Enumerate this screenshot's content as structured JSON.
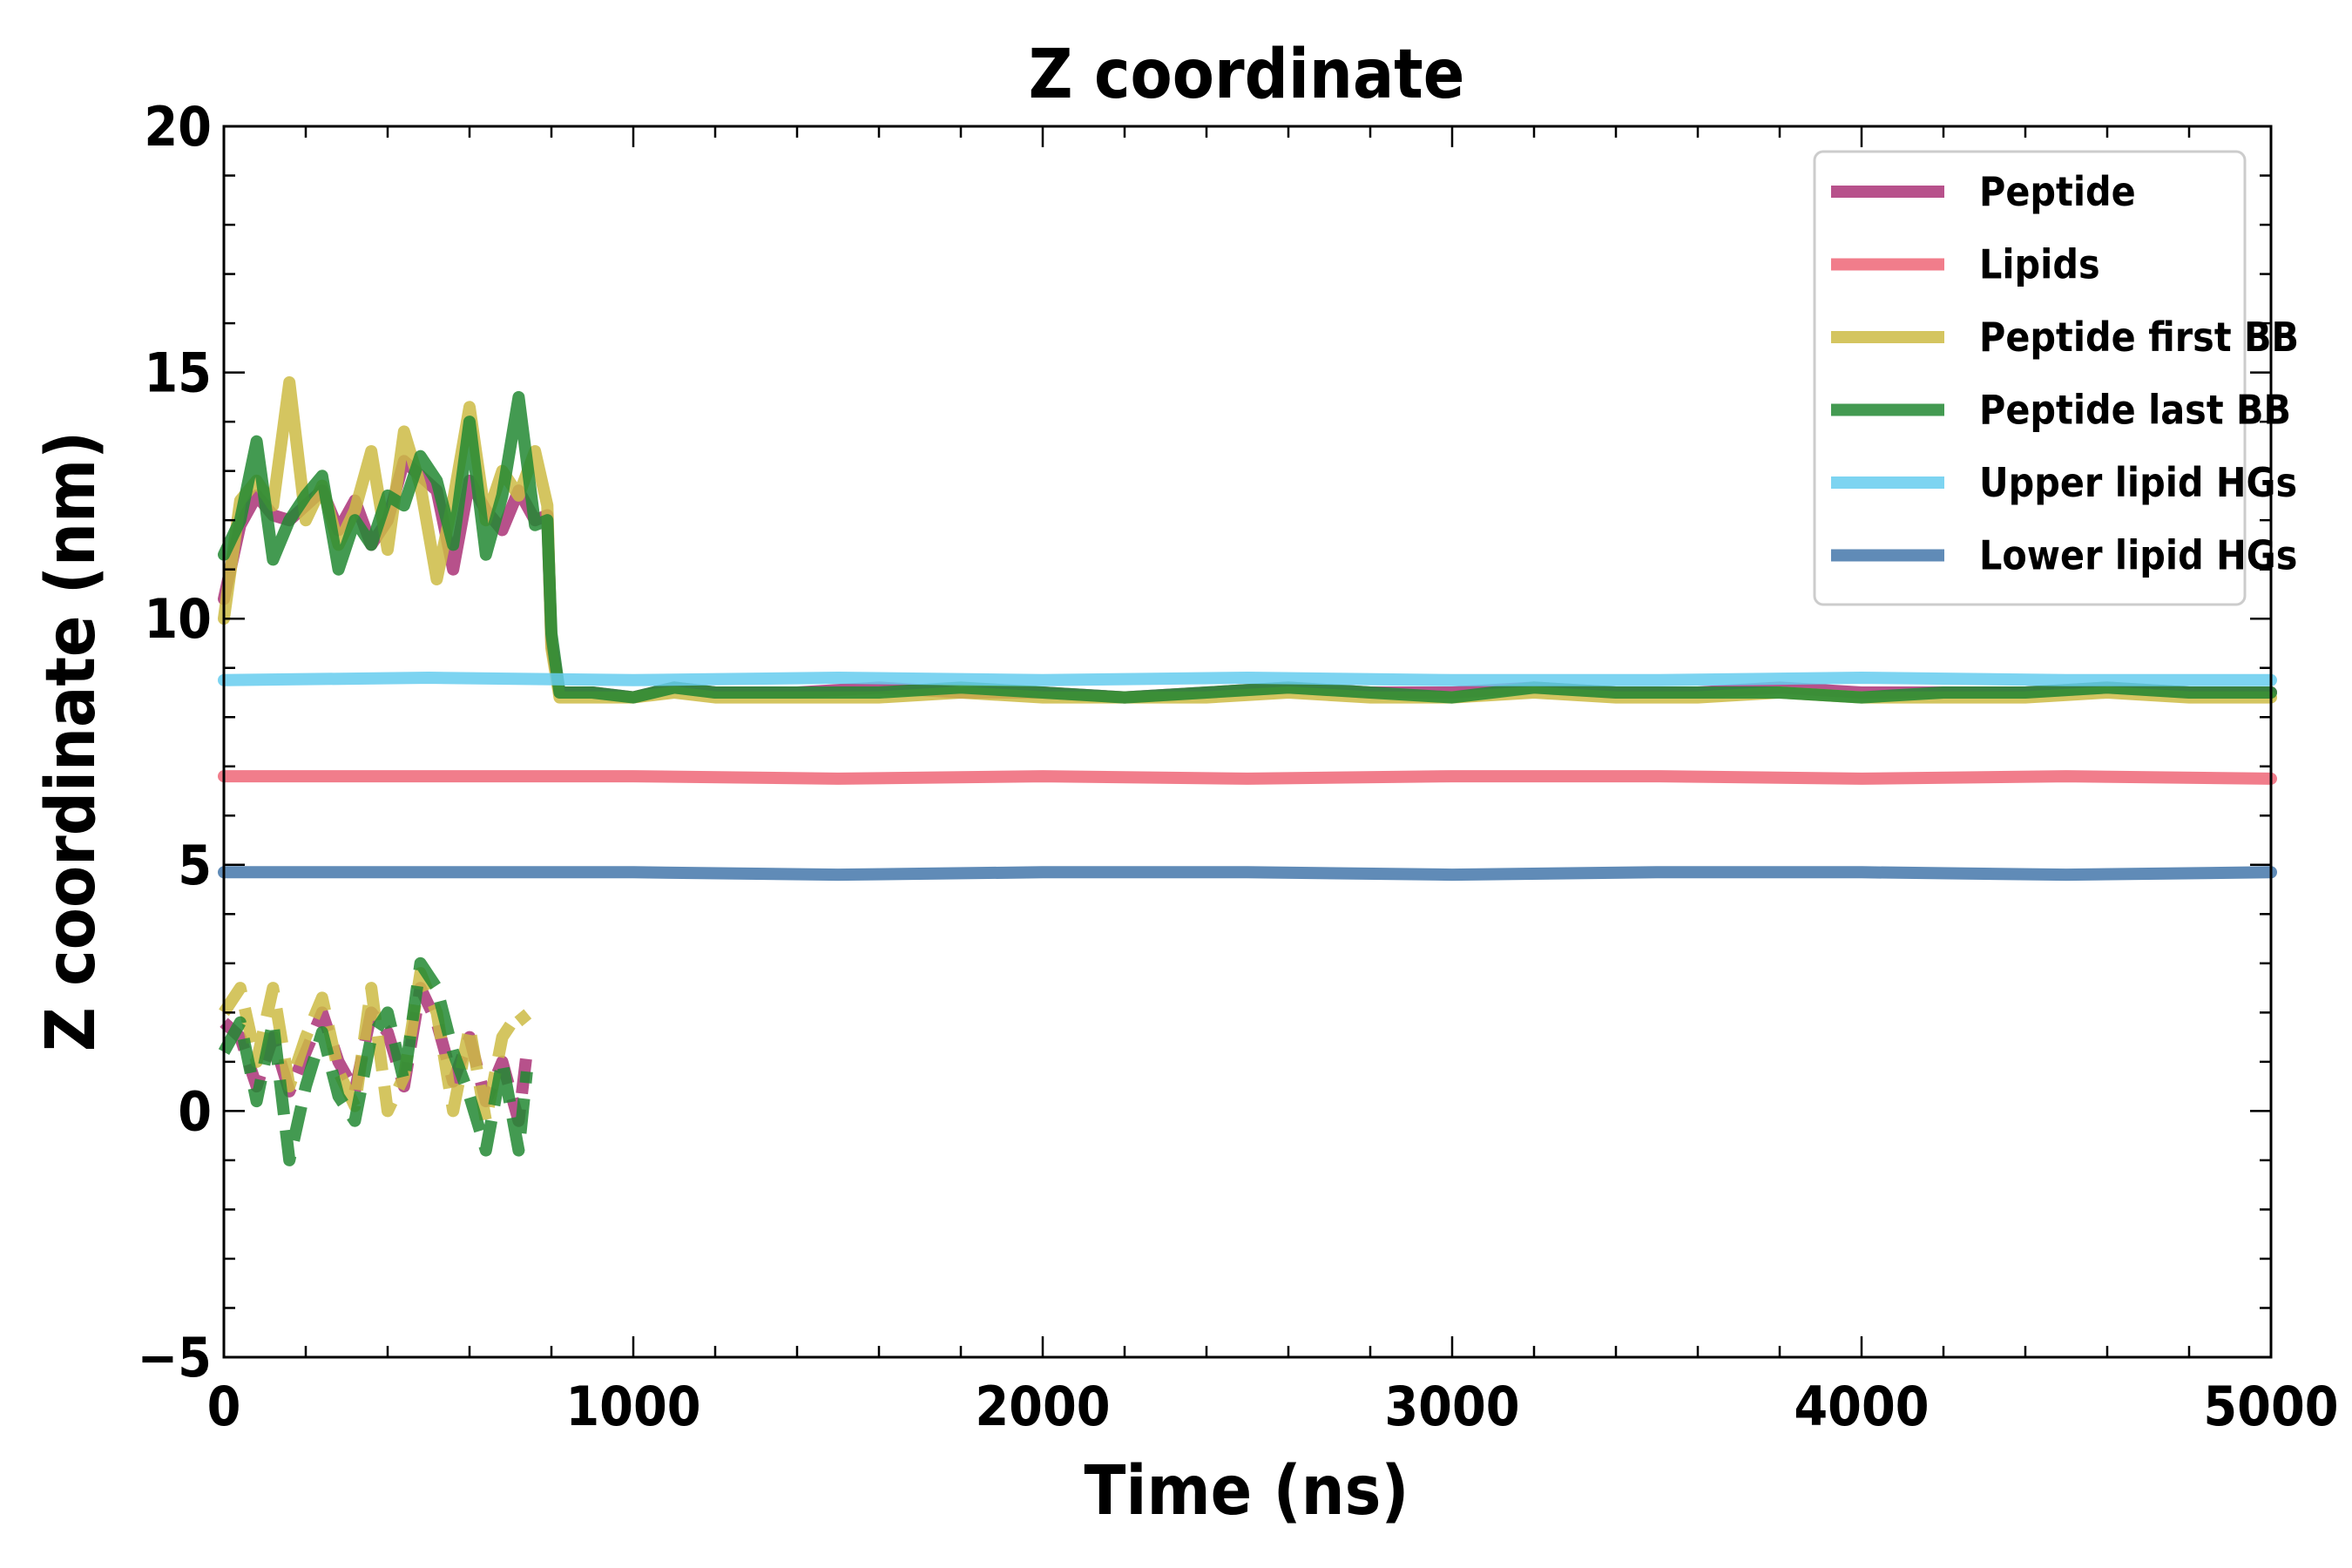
{
  "chart_data": {
    "type": "line",
    "title": "Z coordinate",
    "xlabel": "Time (ns)",
    "ylabel": "Z coordinate (nm)",
    "xlim": [
      0,
      5000
    ],
    "ylim": [
      -5,
      20
    ],
    "xticks": [
      0,
      1000,
      2000,
      3000,
      4000,
      5000
    ],
    "xtick_labels": [
      "0",
      "1000",
      "2000",
      "3000",
      "4000",
      "5000"
    ],
    "yticks": [
      -5,
      0,
      5,
      10,
      15,
      20
    ],
    "ytick_labels": [
      "−5",
      "0",
      "5",
      "10",
      "15",
      "20"
    ],
    "grid": false,
    "legend_position": "top-right",
    "series": [
      {
        "name": "Peptide",
        "color": "#aa3377",
        "style": "solid",
        "x": [
          0,
          40,
          80,
          120,
          160,
          200,
          240,
          280,
          320,
          360,
          400,
          440,
          480,
          520,
          560,
          600,
          640,
          680,
          720,
          760,
          790,
          800,
          820,
          900,
          1000,
          1100,
          1200,
          1400,
          1600,
          1800,
          2000,
          2200,
          2400,
          2600,
          2800,
          3000,
          3200,
          3400,
          3600,
          3800,
          4000,
          4200,
          4400,
          4600,
          4800,
          5000
        ],
        "y": [
          10.4,
          11.9,
          12.5,
          12.1,
          12.0,
          12.3,
          12.6,
          11.8,
          12.4,
          11.5,
          12.0,
          13.2,
          12.9,
          12.6,
          11.0,
          12.8,
          12.2,
          11.8,
          12.6,
          12.0,
          12.1,
          9.5,
          8.5,
          8.5,
          8.4,
          8.6,
          8.5,
          8.5,
          8.6,
          8.5,
          8.5,
          8.4,
          8.5,
          8.6,
          8.5,
          8.5,
          8.6,
          8.5,
          8.5,
          8.6,
          8.5,
          8.5,
          8.5,
          8.6,
          8.5,
          8.5
        ]
      },
      {
        "name": "Lipids",
        "color": "#ee6677",
        "style": "solid",
        "x": [
          0,
          500,
          1000,
          1500,
          2000,
          2500,
          3000,
          3500,
          4000,
          4500,
          5000
        ],
        "y": [
          6.8,
          6.8,
          6.8,
          6.75,
          6.8,
          6.75,
          6.8,
          6.8,
          6.75,
          6.8,
          6.75
        ]
      },
      {
        "name": "Peptide first BB",
        "color": "#ccbb44",
        "style": "solid",
        "x": [
          0,
          40,
          80,
          120,
          160,
          200,
          240,
          280,
          320,
          360,
          400,
          440,
          480,
          520,
          560,
          600,
          640,
          680,
          720,
          760,
          790,
          800,
          820,
          900,
          1000,
          1100,
          1200,
          1400,
          1600,
          1800,
          2000,
          2200,
          2400,
          2600,
          2800,
          3000,
          3200,
          3400,
          3600,
          3800,
          4000,
          4200,
          4400,
          4600,
          4800,
          5000
        ],
        "y": [
          10.0,
          12.4,
          12.8,
          12.3,
          14.8,
          12.0,
          12.7,
          11.5,
          12.2,
          13.4,
          11.4,
          13.8,
          12.7,
          10.8,
          12.4,
          14.3,
          12.0,
          13.0,
          12.5,
          13.4,
          12.3,
          9.4,
          8.4,
          8.4,
          8.4,
          8.5,
          8.4,
          8.4,
          8.4,
          8.5,
          8.4,
          8.4,
          8.4,
          8.5,
          8.4,
          8.4,
          8.5,
          8.4,
          8.4,
          8.5,
          8.4,
          8.4,
          8.4,
          8.5,
          8.4,
          8.4
        ]
      },
      {
        "name": "Peptide last BB",
        "color": "#228833",
        "style": "solid",
        "x": [
          0,
          40,
          80,
          120,
          160,
          200,
          240,
          280,
          320,
          360,
          400,
          440,
          480,
          520,
          560,
          600,
          640,
          680,
          720,
          760,
          790,
          800,
          820,
          900,
          1000,
          1100,
          1200,
          1400,
          1600,
          1800,
          2000,
          2200,
          2400,
          2600,
          2800,
          3000,
          3200,
          3400,
          3600,
          3800,
          4000,
          4200,
          4400,
          4600,
          4800,
          5000
        ],
        "y": [
          11.3,
          12.0,
          13.6,
          11.2,
          12.0,
          12.5,
          12.9,
          11.0,
          12.0,
          11.5,
          12.5,
          12.3,
          13.3,
          12.8,
          11.5,
          14.0,
          11.3,
          12.5,
          14.5,
          11.9,
          12.0,
          9.7,
          8.5,
          8.5,
          8.4,
          8.6,
          8.5,
          8.5,
          8.5,
          8.6,
          8.5,
          8.4,
          8.5,
          8.6,
          8.5,
          8.4,
          8.6,
          8.5,
          8.5,
          8.5,
          8.4,
          8.5,
          8.5,
          8.6,
          8.5,
          8.5
        ]
      },
      {
        "name": "Upper lipid HGs",
        "color": "#66ccee",
        "style": "solid",
        "x": [
          0,
          500,
          1000,
          1500,
          2000,
          2500,
          3000,
          3500,
          4000,
          4500,
          5000
        ],
        "y": [
          8.75,
          8.8,
          8.75,
          8.8,
          8.75,
          8.8,
          8.75,
          8.75,
          8.8,
          8.75,
          8.75
        ]
      },
      {
        "name": "Lower lipid HGs",
        "color": "#4477aa",
        "style": "solid",
        "x": [
          0,
          500,
          1000,
          1500,
          2000,
          2500,
          3000,
          3500,
          4000,
          4500,
          5000
        ],
        "y": [
          4.85,
          4.85,
          4.85,
          4.8,
          4.85,
          4.85,
          4.8,
          4.85,
          4.85,
          4.8,
          4.85
        ]
      },
      {
        "name": "Peptide",
        "color": "#aa3377",
        "style": "dashed",
        "x": [
          0,
          40,
          80,
          120,
          160,
          200,
          240,
          280,
          320,
          360,
          400,
          440,
          480,
          520,
          560,
          600,
          640,
          680,
          720,
          740
        ],
        "y": [
          1.8,
          1.5,
          0.5,
          1.5,
          0.4,
          1.2,
          2.0,
          1.0,
          0.4,
          2.0,
          1.6,
          0.5,
          2.5,
          1.8,
          0.6,
          1.5,
          0.2,
          1.0,
          -0.2,
          1.2
        ]
      },
      {
        "name": "Peptide first BB",
        "color": "#ccbb44",
        "style": "dashed",
        "x": [
          0,
          40,
          80,
          120,
          160,
          200,
          240,
          280,
          320,
          360,
          400,
          440,
          480,
          520,
          560,
          600,
          640,
          680,
          720,
          740
        ],
        "y": [
          2.0,
          2.5,
          1.0,
          2.5,
          0.5,
          1.5,
          2.3,
          0.8,
          0.1,
          2.5,
          0.0,
          0.7,
          2.8,
          2.0,
          0.0,
          1.7,
          -0.2,
          1.5,
          2.0,
          1.8
        ]
      },
      {
        "name": "Peptide last BB",
        "color": "#228833",
        "style": "dashed",
        "x": [
          0,
          40,
          80,
          120,
          160,
          200,
          240,
          280,
          320,
          360,
          400,
          440,
          480,
          520,
          560,
          600,
          640,
          680,
          720,
          740
        ],
        "y": [
          1.2,
          1.8,
          0.2,
          1.8,
          -1.0,
          0.5,
          1.6,
          0.3,
          -0.2,
          1.5,
          2.0,
          0.6,
          3.0,
          2.5,
          1.2,
          0.3,
          -0.8,
          1.0,
          -0.8,
          0.8
        ]
      }
    ]
  }
}
